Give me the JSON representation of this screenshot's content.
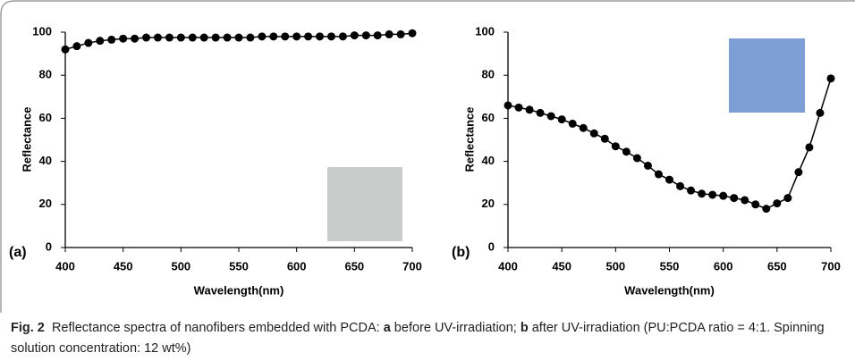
{
  "chart_data": [
    {
      "type": "line",
      "panel_label": "(a)",
      "x_label": "Wavelength(nm)",
      "y_label": "Reflectance",
      "x": [
        400,
        410,
        420,
        430,
        440,
        450,
        460,
        470,
        480,
        490,
        500,
        510,
        520,
        530,
        540,
        550,
        560,
        570,
        580,
        590,
        600,
        610,
        620,
        630,
        640,
        650,
        660,
        670,
        680,
        690,
        700
      ],
      "series": [
        {
          "color": "#000000",
          "values": [
            92,
            93.5,
            95,
            96,
            96.5,
            97,
            97,
            97.5,
            97.5,
            97.5,
            97.5,
            97.5,
            97.5,
            97.5,
            97.5,
            97.5,
            97.5,
            98,
            98,
            98,
            98,
            98,
            98,
            98,
            98,
            98.5,
            98.5,
            98.5,
            99,
            99,
            99.5
          ]
        }
      ],
      "xlim": [
        400,
        700
      ],
      "xticks": [
        400,
        450,
        500,
        550,
        600,
        650,
        700
      ],
      "ylim": [
        0,
        100
      ],
      "yticks": [
        0,
        20,
        40,
        60,
        80,
        100
      ]
    },
    {
      "type": "line",
      "panel_label": "(b)",
      "x_label": "Wavelength(nm)",
      "y_label": "Reflectance",
      "x": [
        400,
        410,
        420,
        430,
        440,
        450,
        460,
        470,
        480,
        490,
        500,
        510,
        520,
        530,
        540,
        550,
        560,
        570,
        580,
        590,
        600,
        610,
        620,
        630,
        640,
        650,
        660,
        670,
        680,
        690,
        700
      ],
      "series": [
        {
          "color": "#000000",
          "values": [
            66,
            65,
            64,
            62.5,
            61,
            59.5,
            57.5,
            55.5,
            53,
            50.5,
            47,
            44.5,
            41.5,
            38,
            34,
            31.5,
            28.5,
            26.5,
            25,
            24.5,
            24,
            23,
            22,
            20,
            18,
            20.5,
            23,
            35,
            46.5,
            62.5,
            78.5
          ]
        }
      ],
      "xlim": [
        400,
        700
      ],
      "xticks": [
        400,
        450,
        500,
        550,
        600,
        650,
        700
      ],
      "ylim": [
        0,
        100
      ],
      "yticks": [
        0,
        20,
        40,
        60,
        80,
        100
      ]
    }
  ],
  "caption": {
    "label": "Fig. 2",
    "text_1": "Reflectance spectra of nanofibers embedded with PCDA: ",
    "a": "a",
    "text_2": " before UV-irradiation; ",
    "b": "b",
    "text_3": " after UV-irradiation (PU:PCDA ratio = 4:1. Spinning solution concentration: 12 wt%)"
  }
}
